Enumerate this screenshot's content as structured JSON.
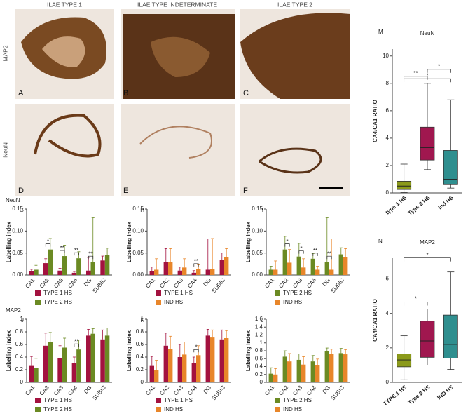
{
  "photo_panels": {
    "columns": [
      "ILAE TYPE 1",
      "ILAE TYPE INDETERMINATE",
      "ILAE TYPE 2"
    ],
    "rows": [
      "MAP2",
      "NeuN"
    ],
    "letters": [
      "A",
      "B",
      "C",
      "D",
      "E",
      "F"
    ]
  },
  "chart_data": [
    {
      "type": "bar",
      "letter": "G",
      "section": "NeuN",
      "ylabel": "Labelling index",
      "categories": [
        "CA1",
        "CA2",
        "CA3",
        "CA4",
        "DG",
        "SUBIC"
      ],
      "ylim": [
        0,
        0.15
      ],
      "yticks": [
        {
          "value": 0,
          "label": "0.00"
        },
        {
          "value": 0.05,
          "label": "0.05"
        },
        {
          "value": 0.1,
          "label": "0.10"
        },
        {
          "value": 0.15,
          "label": "0.15"
        }
      ],
      "series": [
        {
          "name": "TYPE 1 HS",
          "color": "#a3123f",
          "values": [
            0.008,
            0.027,
            0.01,
            0.005,
            0.01,
            0.033
          ],
          "errors": [
            0.005,
            0.01,
            0.005,
            0.003,
            0.03,
            0.01
          ]
        },
        {
          "name": "TYPE 2 HS",
          "color": "#6b8a23",
          "values": [
            0.012,
            0.058,
            0.043,
            0.038,
            0.03,
            0.046
          ],
          "errors": [
            0.01,
            0.025,
            0.025,
            0.015,
            0.1,
            0.015
          ]
        }
      ],
      "significance": [
        null,
        "*",
        "**",
        "**",
        "**",
        null
      ]
    },
    {
      "type": "bar",
      "letter": "H",
      "ylabel": "Labelling index",
      "categories": [
        "CA1",
        "CA2",
        "CA3",
        "CA4",
        "DG",
        "SUBIC"
      ],
      "ylim": [
        0,
        0.15
      ],
      "yticks": [
        {
          "value": 0,
          "label": "0.00"
        },
        {
          "value": 0.05,
          "label": "0.05"
        },
        {
          "value": 0.1,
          "label": "0.10"
        },
        {
          "value": 0.15,
          "label": "0.15"
        }
      ],
      "series": [
        {
          "name": "TYPE 1 HS",
          "color": "#a3123f",
          "values": [
            0.008,
            0.03,
            0.01,
            0.005,
            0.012,
            0.035
          ],
          "errors": [
            0.01,
            0.03,
            0.008,
            0.005,
            0.07,
            0.015
          ]
        },
        {
          "name": "IND HS",
          "color": "#e8862a",
          "values": [
            0.012,
            0.03,
            0.017,
            0.013,
            0.013,
            0.04
          ],
          "errors": [
            0.025,
            0.03,
            0.02,
            0.01,
            0.07,
            0.02
          ]
        }
      ],
      "significance": [
        null,
        null,
        null,
        "**",
        null,
        null
      ]
    },
    {
      "type": "bar",
      "letter": "I",
      "ylabel": "Labelling index",
      "categories": [
        "CA1",
        "CA2",
        "CA3",
        "CA4",
        "DG",
        "SUBIC"
      ],
      "ylim": [
        0,
        0.15
      ],
      "yticks": [
        {
          "value": 0,
          "label": "0.00"
        },
        {
          "value": 0.05,
          "label": "0.05"
        },
        {
          "value": 0.1,
          "label": "0.10"
        },
        {
          "value": 0.15,
          "label": "0.15"
        }
      ],
      "series": [
        {
          "name": "TYPE 2 HS",
          "color": "#6b8a23",
          "values": [
            0.012,
            0.058,
            0.042,
            0.037,
            0.03,
            0.047
          ],
          "errors": [
            0.008,
            0.03,
            0.03,
            0.012,
            0.1,
            0.015
          ]
        },
        {
          "name": "IND HS",
          "color": "#e8862a",
          "values": [
            0.012,
            0.028,
            0.017,
            0.012,
            0.012,
            0.04
          ],
          "errors": [
            0.02,
            0.03,
            0.02,
            0.008,
            0.07,
            0.02
          ]
        }
      ],
      "significance": [
        null,
        "*",
        "*",
        "**",
        "**",
        null
      ]
    },
    {
      "type": "bar",
      "letter": "J",
      "section": "MAP2",
      "ylabel": "Labelling index",
      "categories": [
        "CA1",
        "CA2",
        "CA3",
        "CA4",
        "DG",
        "SUBIC"
      ],
      "ylim": [
        0,
        1.0
      ],
      "yticks": [
        0,
        0.2,
        0.4,
        0.6,
        0.8,
        1
      ],
      "series": [
        {
          "name": "TYPE 1 HS",
          "color": "#a3123f",
          "values": [
            0.26,
            0.58,
            0.38,
            0.3,
            0.74,
            0.68
          ],
          "errors": [
            0.15,
            0.2,
            0.2,
            0.1,
            0.1,
            0.15
          ]
        },
        {
          "name": "TYPE 2 HS",
          "color": "#6b8a23",
          "values": [
            0.23,
            0.64,
            0.55,
            0.52,
            0.77,
            0.74
          ],
          "errors": [
            0.15,
            0.15,
            0.15,
            0.15,
            0.08,
            0.12
          ]
        }
      ],
      "significance": [
        null,
        null,
        null,
        "**",
        null,
        null
      ]
    },
    {
      "type": "bar",
      "letter": "K",
      "ylabel": "Labelling index",
      "categories": [
        "CA1",
        "CA2",
        "CA3",
        "CA4",
        "DG",
        "SUBIC"
      ],
      "ylim": [
        0,
        1.0
      ],
      "yticks": [
        0,
        0.2,
        0.4,
        0.6,
        0.8,
        1
      ],
      "series": [
        {
          "name": "TYPE 1 HS",
          "color": "#a3123f",
          "values": [
            0.26,
            0.58,
            0.4,
            0.3,
            0.74,
            0.68
          ],
          "errors": [
            0.15,
            0.2,
            0.2,
            0.1,
            0.1,
            0.15
          ]
        },
        {
          "name": "IND HS",
          "color": "#e8862a",
          "values": [
            0.2,
            0.53,
            0.44,
            0.43,
            0.71,
            0.7
          ],
          "errors": [
            0.15,
            0.2,
            0.2,
            0.15,
            0.12,
            0.12
          ]
        }
      ],
      "significance": [
        null,
        null,
        null,
        "*",
        null,
        null
      ]
    },
    {
      "type": "bar",
      "letter": "L",
      "ylabel": "Labelling index",
      "categories": [
        "CA1",
        "CA2",
        "CA3",
        "CA4",
        "DG",
        "SUBIC"
      ],
      "ylim": [
        0,
        1.6
      ],
      "yticks": [
        0,
        0.2,
        0.4,
        0.6,
        0.8,
        1,
        1.2,
        1.4,
        1.6
      ],
      "series": [
        {
          "name": "TYPE 2 HS",
          "color": "#6b8a23",
          "values": [
            0.22,
            0.65,
            0.57,
            0.53,
            0.79,
            0.74
          ],
          "errors": [
            0.15,
            0.15,
            0.15,
            0.15,
            0.08,
            0.12
          ]
        },
        {
          "name": "IND HS",
          "color": "#e8862a",
          "values": [
            0.2,
            0.53,
            0.45,
            0.44,
            0.72,
            0.71
          ],
          "errors": [
            0.15,
            0.2,
            0.2,
            0.15,
            0.12,
            0.12
          ]
        }
      ],
      "significance": [
        null,
        null,
        null,
        null,
        null,
        null
      ]
    },
    {
      "type": "box",
      "letter": "M",
      "title": "NeuN",
      "ylabel": "CA4/CA1 RATIO",
      "categories": [
        "type 1 HS",
        "Type 2 HS",
        "Ind HS"
      ],
      "colors": [
        "#8b9a1a",
        "#a0174f",
        "#2f8f8f"
      ],
      "min": [
        0.05,
        1.7,
        0.35
      ],
      "q1": [
        0.25,
        2.4,
        0.6
      ],
      "median": [
        0.5,
        3.3,
        1.0
      ],
      "q3": [
        0.85,
        4.8,
        3.1
      ],
      "max": [
        2.1,
        8.0,
        6.8
      ],
      "ylim": [
        0,
        10.5
      ],
      "yticks": [
        0,
        2,
        4,
        6,
        8,
        10
      ],
      "brackets": [
        {
          "pair": [
            0,
            1
          ],
          "label": "**"
        },
        {
          "pair": [
            1,
            2
          ],
          "label": "*"
        },
        {
          "pair": [
            0,
            2
          ],
          "label": "*"
        }
      ]
    },
    {
      "type": "box",
      "letter": "N",
      "title": "MAP2",
      "ylabel": "CA4/CA1 RATIO",
      "categories": [
        "TYPE 1 HS",
        "Type 2 HS",
        "IND HS"
      ],
      "colors": [
        "#8b9a1a",
        "#a0174f",
        "#2f8f8f"
      ],
      "min": [
        0.15,
        1.0,
        0.75
      ],
      "q1": [
        0.9,
        1.45,
        1.4
      ],
      "median": [
        1.3,
        2.4,
        2.2
      ],
      "q3": [
        1.65,
        3.55,
        3.9
      ],
      "max": [
        2.7,
        4.25,
        6.4
      ],
      "ylim": [
        0,
        7.2
      ],
      "yticks": [
        0,
        2,
        4,
        6
      ],
      "brackets": [
        {
          "pair": [
            0,
            1
          ],
          "label": "*"
        },
        {
          "pair": [
            0,
            2
          ],
          "label": "*"
        }
      ]
    }
  ]
}
